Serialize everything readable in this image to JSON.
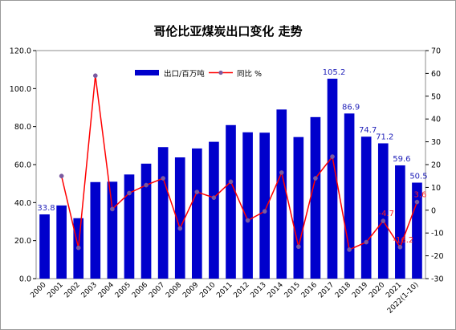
{
  "chart_data": {
    "type": "bar",
    "title": "哥伦比亚煤炭出口变化 走势",
    "categories": [
      "2000",
      "2001",
      "2002",
      "2003",
      "2004",
      "2005",
      "2006",
      "2007",
      "2008",
      "2009",
      "2010",
      "2011",
      "2012",
      "2013",
      "2014",
      "2015",
      "2016",
      "2017",
      "2018",
      "2019",
      "2020",
      "2021",
      "2022(1-10)"
    ],
    "series": [
      {
        "name": "出口/百万吨",
        "type": "bar",
        "axis": "left",
        "color": "#0000cc",
        "values": [
          33.8,
          38.5,
          31.8,
          50.8,
          51.0,
          54.8,
          60.5,
          69.2,
          63.8,
          68.5,
          72.0,
          80.8,
          77.0,
          76.8,
          89.0,
          74.5,
          85.0,
          105.2,
          86.9,
          74.7,
          71.2,
          59.6,
          50.5
        ]
      },
      {
        "name": "同比 %",
        "type": "line",
        "axis": "right",
        "color": "#ff0000",
        "marker_color": "#7a5aa0",
        "values": [
          null,
          15.0,
          -16.5,
          59.0,
          0.5,
          7.5,
          11.0,
          14.0,
          -8.0,
          8.0,
          5.5,
          12.5,
          -4.5,
          -0.5,
          16.5,
          -16.0,
          14.0,
          23.5,
          -17.3,
          -14.0,
          -4.7,
          -16.2,
          3.6
        ]
      }
    ],
    "bar_data_labels": [
      {
        "index": 0,
        "text": "33.8"
      },
      {
        "index": 17,
        "text": "105.2"
      },
      {
        "index": 18,
        "text": "86.9"
      },
      {
        "index": 19,
        "text": "74.7"
      },
      {
        "index": 20,
        "text": "71.2"
      },
      {
        "index": 21,
        "text": "59.6"
      },
      {
        "index": 22,
        "text": "50.5"
      }
    ],
    "line_data_labels": [
      {
        "index": 20,
        "text": "-4.7"
      },
      {
        "index": 21,
        "text": "-16.2"
      },
      {
        "index": 22,
        "text": "3.6"
      }
    ],
    "ylim_left": [
      0,
      120
    ],
    "yticks_left": [
      "0.0",
      "20.0",
      "40.0",
      "60.0",
      "80.0",
      "100.0",
      "120.0"
    ],
    "ylim_right": [
      -30,
      70
    ],
    "yticks_right": [
      "-30",
      "-20",
      "-10",
      "0",
      "10",
      "20",
      "30",
      "40",
      "50",
      "60",
      "70"
    ],
    "grid": false,
    "legend_position": "top-left inside plot"
  }
}
